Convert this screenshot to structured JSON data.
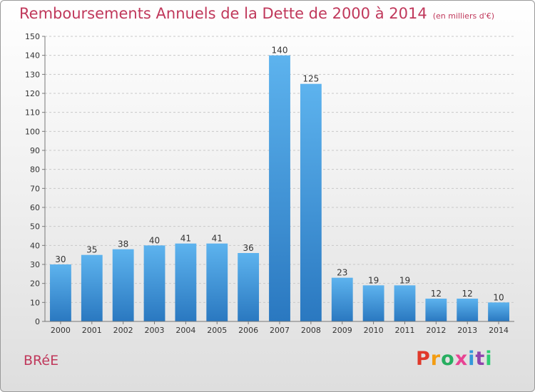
{
  "chart_data": {
    "type": "bar",
    "title": "Remboursements Annuels de la Dette de 2000 à 2014",
    "unit_label": "(en milliers d'€)",
    "categories": [
      "2000",
      "2001",
      "2002",
      "2003",
      "2004",
      "2005",
      "2006",
      "2007",
      "2008",
      "2009",
      "2010",
      "2011",
      "2012",
      "2013",
      "2014"
    ],
    "values": [
      30,
      35,
      38,
      40,
      41,
      41,
      36,
      140,
      125,
      23,
      19,
      19,
      12,
      12,
      10
    ],
    "ylim": [
      0,
      150
    ],
    "yticks": [
      0,
      10,
      20,
      30,
      40,
      50,
      60,
      70,
      80,
      90,
      100,
      110,
      120,
      130,
      140,
      150
    ],
    "grid": true,
    "legend": "none",
    "bar_color": "#3a8fd8"
  },
  "footer": {
    "commune": "BRéE",
    "brand": "Proxiti"
  },
  "colors": {
    "title": "#c0385b",
    "brand_letters": [
      "#e0392b",
      "#f39c12",
      "#27ae60",
      "#e84393",
      "#3498db",
      "#8e44ad",
      "#2ecc71"
    ]
  }
}
